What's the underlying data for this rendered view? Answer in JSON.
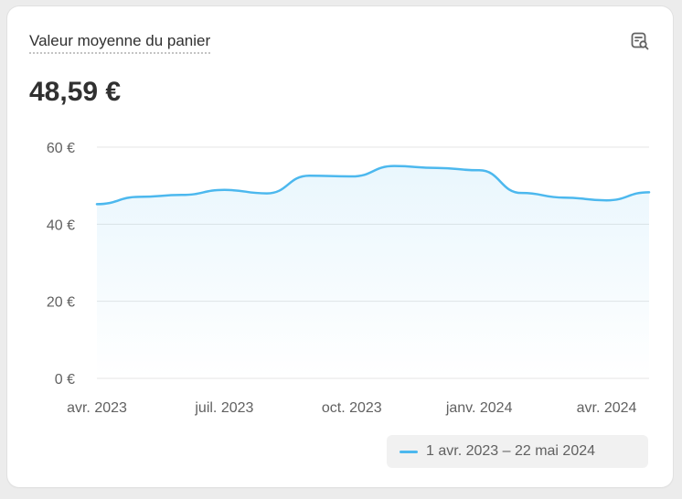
{
  "card": {
    "title": "Valeur moyenne du panier",
    "value": "48,59 €",
    "action_icon": "search-report-icon"
  },
  "colors": {
    "line": "#4cb8ee",
    "grid": "#e6e6e6",
    "text": "#303030",
    "muted": "#616161"
  },
  "chart_data": {
    "type": "line",
    "title": "Valeur moyenne du panier",
    "ylim": [
      0,
      60
    ],
    "yticks": [
      0,
      20,
      40,
      60
    ],
    "ytick_labels": [
      "0 €",
      "20 €",
      "40 €",
      "60 €"
    ],
    "x_ticks": [
      "avr. 2023",
      "juil. 2023",
      "oct. 2023",
      "janv. 2024",
      "avr. 2024"
    ],
    "grid": true,
    "legend_position": "bottom-right",
    "series": [
      {
        "name": "1 avr. 2023 – 22 mai 2024",
        "x": [
          "avr. 2023",
          "mai 2023",
          "juin 2023",
          "juil. 2023",
          "août 2023",
          "sept. 2023",
          "oct. 2023",
          "nov. 2023",
          "déc. 2023",
          "janv. 2024",
          "févr. 2024",
          "mars 2024",
          "avr. 2024",
          "mai 2024"
        ],
        "values": [
          45.2,
          47.1,
          47.6,
          48.9,
          48.0,
          52.6,
          52.4,
          55.1,
          54.6,
          54.0,
          48.1,
          46.9,
          46.2,
          48.3
        ]
      }
    ]
  }
}
